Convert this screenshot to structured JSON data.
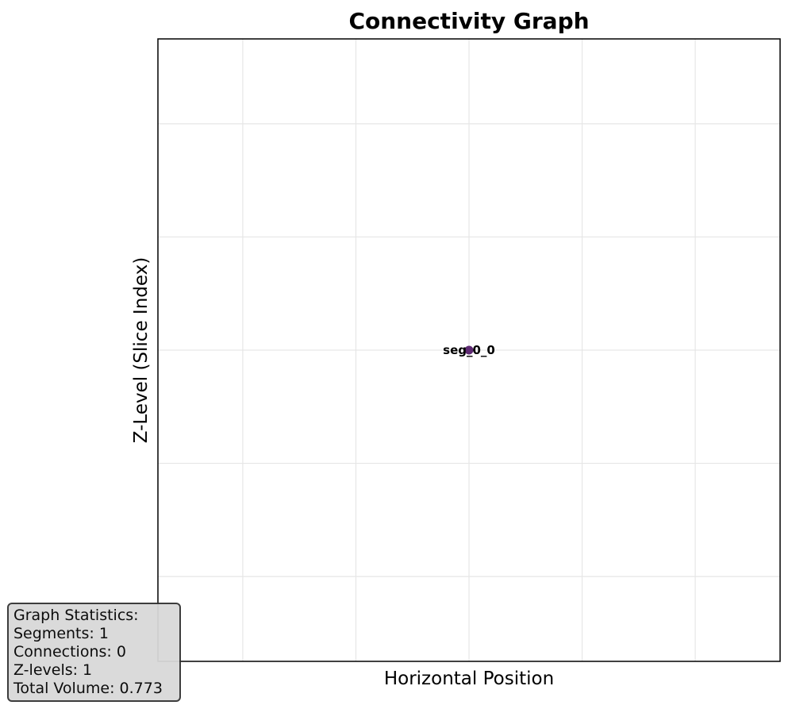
{
  "chart_data": {
    "type": "scatter",
    "title": "Connectivity Graph",
    "xlabel": "Horizontal Position",
    "ylabel": "Z-Level (Slice Index)",
    "grid": true,
    "ticks_visible": false,
    "xlim": [
      -0.055,
      0.055
    ],
    "ylim": [
      -0.055,
      0.055
    ],
    "x_gridlines": [
      -0.04,
      -0.02,
      0.0,
      0.02,
      0.04
    ],
    "y_gridlines": [
      -0.04,
      -0.02,
      0.0,
      0.02,
      0.04
    ],
    "nodes": [
      {
        "label": "seg_0_0",
        "x": 0.0,
        "z": 0.0,
        "color": "#5e2a72"
      }
    ],
    "edges": []
  },
  "stats": {
    "title": "Graph Statistics:",
    "segments": "Segments: 1",
    "connections": "Connections: 0",
    "z_levels": "Z-levels: 1",
    "total_volume": "Total Volume: 0.773"
  },
  "colors": {
    "axis": "#000000",
    "grid": "#e6e6e6",
    "node": "#5e2a72",
    "stats_bg": "#d9d9d9",
    "stats_border": "#333333"
  }
}
